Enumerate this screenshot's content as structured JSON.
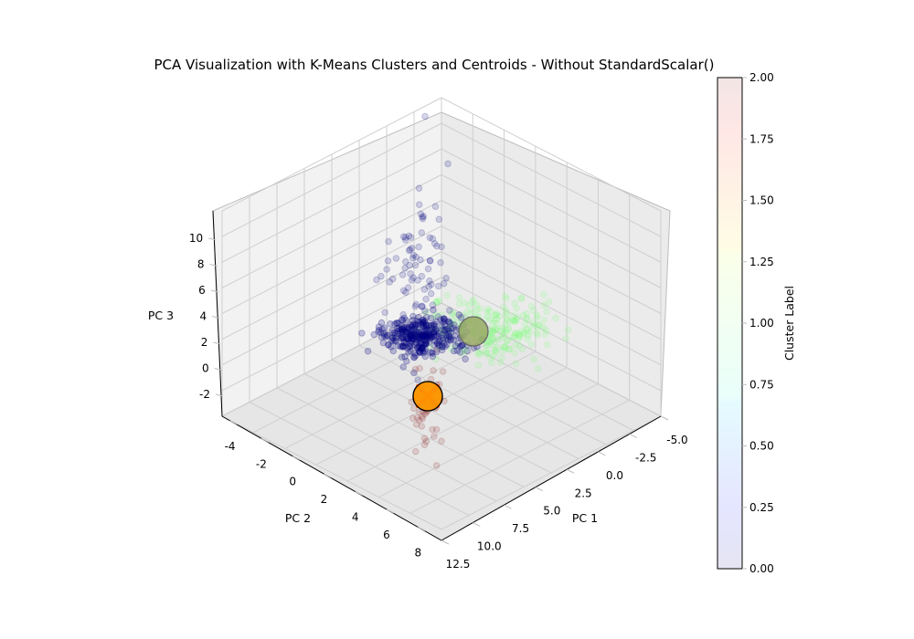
{
  "chart_data": {
    "type": "scatter",
    "title": "PCA Visualization with K-Means Clusters and Centroids - Without StandardScalar()",
    "xlabel": "PC 1",
    "ylabel": "PC 2",
    "zlabel": "PC 3",
    "xlim": [
      -6.5,
      12.5
    ],
    "ylim": [
      -4.5,
      9.0
    ],
    "zlim": [
      -3.0,
      11.5
    ],
    "x_ticks": [
      "-5.0",
      "-2.5",
      "0.0",
      "2.5",
      "5.0",
      "7.5",
      "10.0",
      "12.5"
    ],
    "y_ticks": [
      "-4",
      "-2",
      "0",
      "2",
      "4",
      "6",
      "8"
    ],
    "z_ticks": [
      "-2",
      "0",
      "2",
      "4",
      "6",
      "8",
      "10"
    ],
    "grid": true,
    "colorbar": {
      "label": "Cluster Label",
      "range": [
        0,
        2
      ],
      "ticks": [
        "0.00",
        "0.25",
        "0.50",
        "0.75",
        "1.00",
        "1.25",
        "1.50",
        "1.75",
        "2.00"
      ],
      "colormap": "jet",
      "alpha": 0.1
    },
    "series": [
      {
        "cluster": 0,
        "color": "#00007f",
        "points": []
      },
      {
        "cluster": 1,
        "color": "#7dff7a",
        "points": []
      },
      {
        "cluster": 2,
        "color": "#7f0000",
        "points": []
      }
    ],
    "centroids": [
      {
        "cluster": 0,
        "color": "#ff8c00",
        "x": 8.6,
        "y": 1.5,
        "z": 2.5
      },
      {
        "cluster": 1,
        "color": "#8c9a4a",
        "x": 2.0,
        "y": -1.5,
        "z": 3.0
      },
      {
        "cluster": 2,
        "color": "#ff8c00",
        "x": 9.0,
        "y": 2.0,
        "z": 2.5
      }
    ]
  }
}
